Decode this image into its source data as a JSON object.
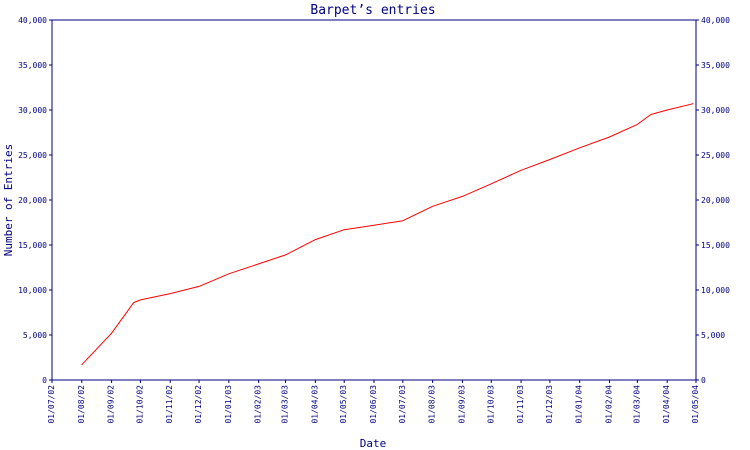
{
  "chart_data": {
    "type": "line",
    "title": "Barpet’s entries",
    "xlabel": "Date",
    "ylabel": "Number of Entries",
    "x_ticks": [
      "01/07/02",
      "01/08/02",
      "01/09/02",
      "01/10/02",
      "01/11/02",
      "01/12/02",
      "01/01/03",
      "01/02/03",
      "01/03/03",
      "01/04/03",
      "01/05/03",
      "01/06/03",
      "01/07/03",
      "01/08/03",
      "01/09/03",
      "01/10/03",
      "01/11/03",
      "01/12/03",
      "01/01/04",
      "01/02/04",
      "01/03/04",
      "01/04/04",
      "01/05/04"
    ],
    "y_ticks": [
      "0",
      "5,000",
      "10,000",
      "15,000",
      "20,000",
      "25,000",
      "30,000",
      "35,000",
      "40,000"
    ],
    "ylim": [
      0,
      40000
    ],
    "grid": false,
    "series": [
      {
        "color": "#ff0000",
        "points": [
          {
            "x": "2002-08-01",
            "y": 1700
          },
          {
            "x": "2002-09-01",
            "y": 5200
          },
          {
            "x": "2002-09-24",
            "y": 8600
          },
          {
            "x": "2002-10-01",
            "y": 8900
          },
          {
            "x": "2002-11-01",
            "y": 9600
          },
          {
            "x": "2002-12-01",
            "y": 10400
          },
          {
            "x": "2003-01-01",
            "y": 11800
          },
          {
            "x": "2003-02-01",
            "y": 12900
          },
          {
            "x": "2003-03-01",
            "y": 13900
          },
          {
            "x": "2003-04-01",
            "y": 15600
          },
          {
            "x": "2003-05-01",
            "y": 16700
          },
          {
            "x": "2003-06-01",
            "y": 17200
          },
          {
            "x": "2003-07-01",
            "y": 17700
          },
          {
            "x": "2003-08-01",
            "y": 19300
          },
          {
            "x": "2003-09-01",
            "y": 20400
          },
          {
            "x": "2003-10-01",
            "y": 21800
          },
          {
            "x": "2003-11-01",
            "y": 23300
          },
          {
            "x": "2003-12-01",
            "y": 24500
          },
          {
            "x": "2004-01-01",
            "y": 25800
          },
          {
            "x": "2004-02-01",
            "y": 27000
          },
          {
            "x": "2004-03-01",
            "y": 28400
          },
          {
            "x": "2004-03-15",
            "y": 29500
          },
          {
            "x": "2004-04-01",
            "y": 30000
          },
          {
            "x": "2004-04-28",
            "y": 30700
          }
        ]
      }
    ]
  }
}
